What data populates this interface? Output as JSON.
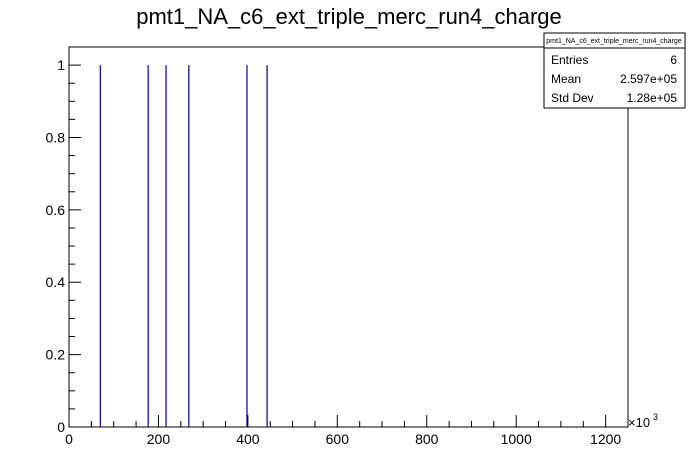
{
  "chart_data": {
    "type": "bar",
    "title": "pmt1_NA_c6_ext_triple_merc_run4_charge",
    "xlabel": "",
    "ylabel": "",
    "x_exponent_label": "×10",
    "x_exponent_power": "3",
    "xlim": [
      0,
      1250
    ],
    "ylim": [
      0,
      1.05
    ],
    "x_ticks": [
      0,
      200,
      400,
      600,
      800,
      1000,
      1200
    ],
    "x_tick_labels": [
      "0",
      "200",
      "400",
      "600",
      "800",
      "1000",
      "1200"
    ],
    "y_ticks": [
      0,
      0.2,
      0.4,
      0.6,
      0.8,
      1
    ],
    "y_tick_labels": [
      "0",
      "0.2",
      "0.4",
      "0.6",
      "0.8",
      "1"
    ],
    "entries_x": [
      70,
      177,
      217,
      268,
      398,
      443
    ],
    "values": [
      1,
      1,
      1,
      1,
      1,
      1
    ],
    "line_color": "#000099",
    "grid": false,
    "stats_box": {
      "title": "pmt1_NA_c6_ext_triple_merc_run4_charge",
      "rows": [
        {
          "label": "Entries",
          "value": "6"
        },
        {
          "label": "Mean",
          "value": "2.597e+05"
        },
        {
          "label": "Std Dev",
          "value": "1.28e+05"
        }
      ],
      "placement": "top-right"
    }
  }
}
